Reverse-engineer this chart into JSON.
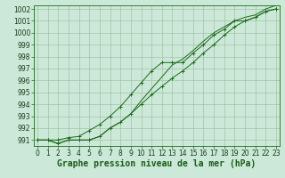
{
  "title": "Graphe pression niveau de la mer (hPa)",
  "x": [
    0,
    1,
    2,
    3,
    4,
    5,
    6,
    7,
    8,
    9,
    10,
    11,
    12,
    13,
    14,
    15,
    16,
    17,
    18,
    19,
    20,
    21,
    22,
    23
  ],
  "line_mid": [
    991.0,
    991.0,
    990.7,
    991.0,
    991.0,
    991.0,
    991.3,
    992.0,
    992.5,
    993.2,
    994.0,
    994.8,
    995.5,
    996.2,
    996.8,
    997.5,
    998.3,
    999.0,
    999.8,
    1000.5,
    1001.0,
    1001.3,
    1001.8,
    1002.0
  ],
  "line_high": [
    991.0,
    991.0,
    991.0,
    991.2,
    991.3,
    991.8,
    992.3,
    993.0,
    993.8,
    994.8,
    995.8,
    996.8,
    997.5,
    997.5,
    997.5,
    998.3,
    999.0,
    999.8,
    1000.3,
    1001.0,
    1001.0,
    1001.3,
    1001.8,
    1002.0
  ],
  "line_low": [
    991.0,
    991.0,
    990.7,
    991.0,
    991.0,
    991.0,
    991.3,
    992.0,
    992.5,
    993.2,
    994.3,
    995.3,
    996.3,
    997.3,
    997.8,
    998.5,
    999.3,
    1000.0,
    1000.5,
    1001.0,
    1001.3,
    1001.5,
    1002.0,
    1002.3
  ],
  "ylim_min": 990.5,
  "ylim_max": 1002.3,
  "yticks": [
    991,
    992,
    993,
    994,
    995,
    996,
    997,
    998,
    999,
    1000,
    1001,
    1002
  ],
  "xlim_min": -0.3,
  "xlim_max": 23.3,
  "xticks": [
    0,
    1,
    2,
    3,
    4,
    5,
    6,
    7,
    8,
    9,
    10,
    11,
    12,
    13,
    14,
    15,
    16,
    17,
    18,
    19,
    20,
    21,
    22,
    23
  ],
  "line_color": "#1a6b1a",
  "bg_color": "#cce8d8",
  "plot_bg": "#cce8d8",
  "grid_color": "#99bb99",
  "title_color": "#1a5c1a",
  "title_fontsize": 7.0,
  "tick_fontsize": 5.5,
  "axis_label_color": "#1a3a1a"
}
